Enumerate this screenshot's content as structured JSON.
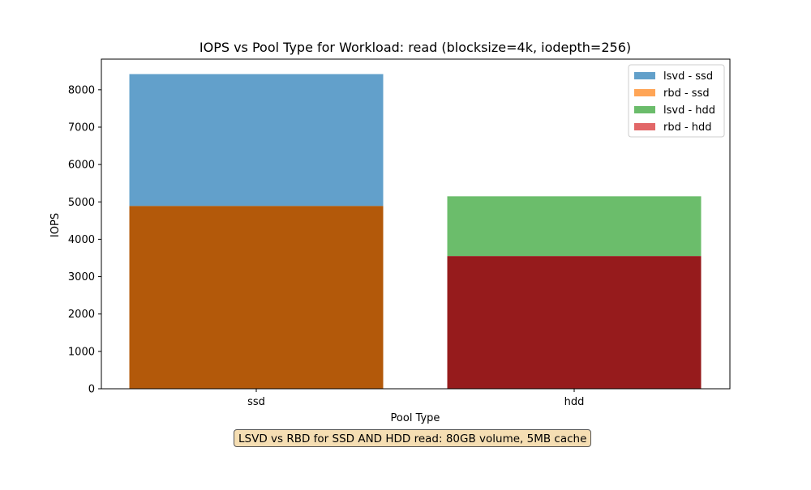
{
  "chart_data": {
    "type": "bar",
    "title": "IOPS vs Pool Type for Workload: read (blocksize=4k, iodepth=256)",
    "xlabel": "Pool Type",
    "ylabel": "IOPS",
    "categories": [
      "ssd",
      "hdd"
    ],
    "ylim": [
      0,
      8820
    ],
    "yticks": [
      0,
      1000,
      2000,
      3000,
      4000,
      5000,
      6000,
      7000,
      8000
    ],
    "grid": false,
    "legend_position": "top-right",
    "bar_mode": "overlay",
    "series": [
      {
        "name": "lsvd - ssd",
        "category": "ssd",
        "value": 8420,
        "color": "#1f77b4"
      },
      {
        "name": "rbd - ssd",
        "category": "ssd",
        "value": 4890,
        "color": "#ff7f0e"
      },
      {
        "name": "lsvd - hdd",
        "category": "hdd",
        "value": 5150,
        "color": "#2ca02c"
      },
      {
        "name": "rbd - hdd",
        "category": "hdd",
        "value": 3550,
        "color": "#d62728"
      }
    ],
    "annotation": "LSVD vs RBD for SSD AND HDD read: 80GB volume, 5MB cache"
  }
}
